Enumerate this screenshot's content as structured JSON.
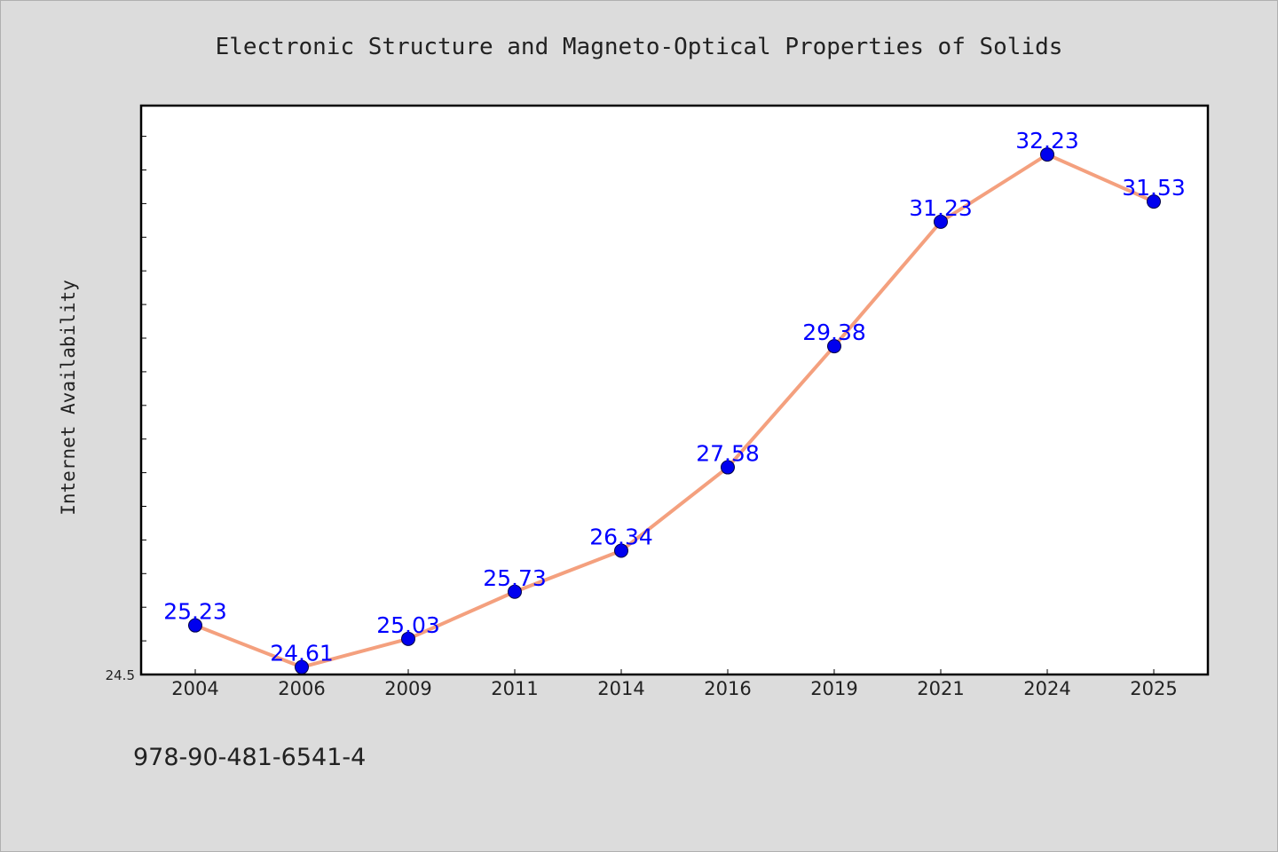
{
  "chart_data": {
    "type": "line",
    "title": "Electronic Structure and Magneto-Optical Properties of Solids",
    "xlabel": "",
    "ylabel": "Internet Availability",
    "categories": [
      "2004",
      "2006",
      "2009",
      "2011",
      "2014",
      "2016",
      "2019",
      "2021",
      "2024",
      "2025"
    ],
    "series": [
      {
        "values": [
          25.23,
          24.61,
          25.03,
          25.73,
          26.34,
          27.58,
          29.38,
          31.23,
          32.23,
          31.53
        ],
        "labels": [
          "25.23",
          "24.61",
          "25.03",
          "25.73",
          "26.34",
          "27.58",
          "29.38",
          "31.23",
          "32.23",
          "31.53"
        ]
      }
    ],
    "ylim": [
      24.5,
      33.0
    ],
    "y_tick_label": "24.5",
    "grid": false,
    "legend": "none",
    "colors": {
      "line": "#f4a07e",
      "marker": "#0000ee",
      "label": "#0000ff",
      "background": "#dcdcdc",
      "plot_area": "#ffffff"
    }
  },
  "footer": {
    "isbn": "978-90-481-6541-4"
  }
}
